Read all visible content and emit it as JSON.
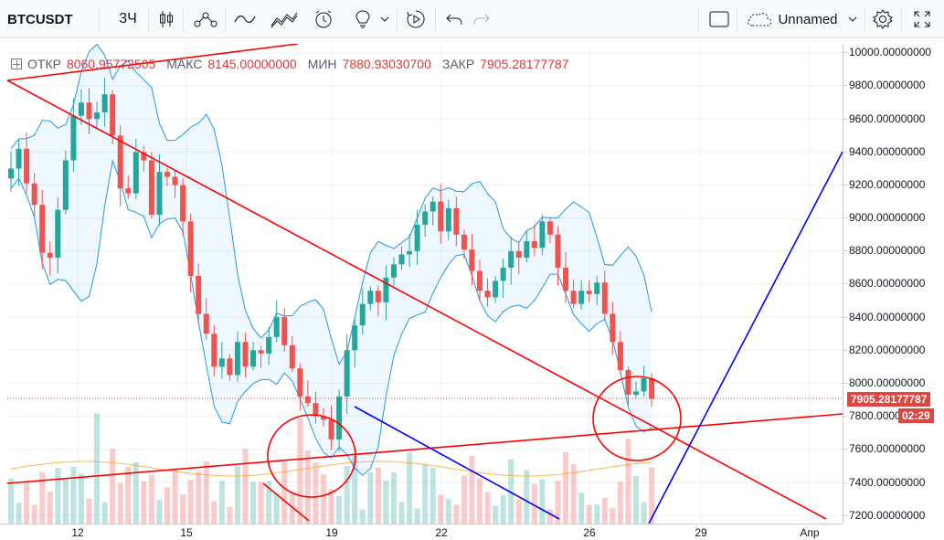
{
  "toolbar": {
    "symbol": "BTCUSDT",
    "interval": "3Ч",
    "layout_name": "Unnamed",
    "icons": [
      "candles-icon",
      "indicators-icon",
      "compare-icon",
      "templates-icon",
      "alert-icon",
      "ideas-icon",
      "replay-icon",
      "undo-icon",
      "redo-icon",
      "select-layout-icon",
      "cloud-icon",
      "settings-icon",
      "fullscreen-icon"
    ]
  },
  "legend": {
    "open_label": "ОТКР",
    "open_value": "8060.95772505",
    "high_label": "МАКС",
    "high_value": "8145.00000000",
    "low_label": "МИН",
    "low_value": "7880.93030700",
    "close_label": "ЗАКР",
    "close_value": "7905.28177787"
  },
  "price_axis": {
    "ticks": [
      "10000.00000000",
      "9800.00000000",
      "9600.00000000",
      "9400.00000000",
      "9200.00000000",
      "9000.00000000",
      "8800.00000000",
      "8600.00000000",
      "8400.00000000",
      "8200.00000000",
      "8000.00000000",
      "7800.00000000",
      "7600.00000000",
      "7400.00000000",
      "7200.00000000"
    ],
    "last_price_label": "7905.28177787",
    "countdown_label": "02:29"
  },
  "time_axis": {
    "ticks": [
      "12",
      "15",
      "19",
      "22",
      "26",
      "29",
      "Апр"
    ]
  },
  "colors": {
    "up": "#26a69a",
    "down": "#ef5350",
    "band": "#2196f3",
    "trend_red": "#ff0000",
    "trend_blue": "#0000ff",
    "last_price_bg": "#e0463f",
    "countdown_bg": "#e0463f"
  },
  "chart_data": {
    "type": "candlestick",
    "ylim": [
      7180,
      10050
    ],
    "close": [
      9300,
      9420,
      9210,
      9080,
      8790,
      8760,
      9050,
      9350,
      9620,
      9700,
      9600,
      9640,
      9750,
      9500,
      9180,
      9150,
      9400,
      9350,
      9020,
      9280,
      9250,
      9200,
      8980,
      8650,
      8420,
      8300,
      8100,
      8150,
      8050,
      8250,
      8100,
      8200,
      8180,
      8280,
      8400,
      8230,
      8090,
      7920,
      7880,
      7800,
      7780,
      7660,
      7920,
      8200,
      8350,
      8480,
      8560,
      8490,
      8640,
      8720,
      8780,
      8800,
      8960,
      9040,
      9100,
      8920,
      9060,
      8900,
      8810,
      8680,
      8560,
      8520,
      8620,
      8700,
      8800,
      8760,
      8860,
      8820,
      8980,
      8900,
      8700,
      8560,
      8480,
      8560,
      8540,
      8610,
      8420,
      8250,
      8080,
      7930,
      7950,
      8030,
      7905
    ]
  }
}
